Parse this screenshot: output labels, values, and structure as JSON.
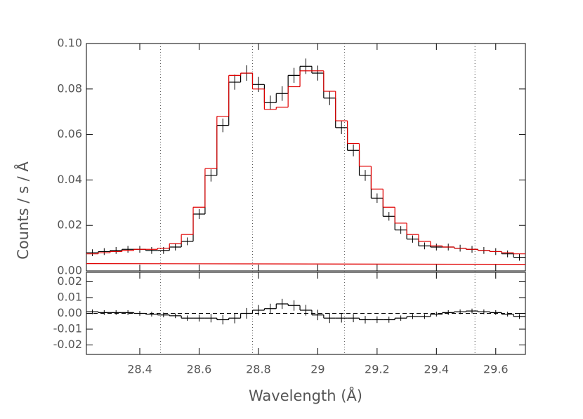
{
  "chart_data": {
    "type": "step",
    "xlabel": "Wavelength (Å)",
    "ylabel": "Counts / s / Å",
    "xlim": [
      28.22,
      29.7
    ],
    "xticks": [
      28.4,
      28.6,
      28.8,
      29.0,
      29.2,
      29.4,
      29.6
    ],
    "vlines": [
      28.47,
      28.78,
      29.09,
      29.53
    ],
    "bins": [
      28.22,
      28.26,
      28.3,
      28.34,
      28.38,
      28.42,
      28.46,
      28.5,
      28.54,
      28.58,
      28.62,
      28.66,
      28.7,
      28.74,
      28.78,
      28.82,
      28.86,
      28.9,
      28.94,
      28.98,
      29.02,
      29.06,
      29.1,
      29.14,
      29.18,
      29.22,
      29.26,
      29.3,
      29.34,
      29.38,
      29.42,
      29.46,
      29.5,
      29.54,
      29.58,
      29.62,
      29.66,
      29.7
    ],
    "ylim": [
      0,
      0.1
    ],
    "yticks": [
      {
        "value": 0,
        "label": "0.00"
      },
      {
        "value": 0.02,
        "label": "0.02"
      },
      {
        "value": 0.04,
        "label": "0.04"
      },
      {
        "value": 0.06,
        "label": "0.06"
      },
      {
        "value": 0.08,
        "label": "0.08"
      },
      {
        "value": 0.1,
        "label": "0.10"
      }
    ],
    "data": {
      "color": "#000000",
      "values": [
        0.008,
        0.0085,
        0.009,
        0.0095,
        0.0095,
        0.009,
        0.009,
        0.0105,
        0.013,
        0.025,
        0.042,
        0.064,
        0.083,
        0.087,
        0.082,
        0.074,
        0.078,
        0.086,
        0.09,
        0.087,
        0.076,
        0.063,
        0.053,
        0.042,
        0.032,
        0.024,
        0.018,
        0.014,
        0.011,
        0.0105,
        0.0105,
        0.01,
        0.0095,
        0.009,
        0.0085,
        0.0075,
        0.006
      ],
      "errors": [
        0.0015,
        0.0015,
        0.0015,
        0.0015,
        0.0015,
        0.0015,
        0.0015,
        0.0015,
        0.0017,
        0.0022,
        0.0027,
        0.003,
        0.0033,
        0.0034,
        0.0033,
        0.0031,
        0.0032,
        0.0033,
        0.0034,
        0.0033,
        0.0031,
        0.0028,
        0.0026,
        0.0024,
        0.0021,
        0.0019,
        0.0017,
        0.0016,
        0.0015,
        0.0015,
        0.0015,
        0.0015,
        0.0015,
        0.0015,
        0.0015,
        0.0015,
        0.0015
      ]
    },
    "model": {
      "color": "#e00000",
      "values": [
        0.0075,
        0.008,
        0.0085,
        0.009,
        0.0095,
        0.0095,
        0.01,
        0.012,
        0.016,
        0.028,
        0.045,
        0.068,
        0.086,
        0.087,
        0.08,
        0.071,
        0.072,
        0.081,
        0.088,
        0.088,
        0.079,
        0.066,
        0.056,
        0.046,
        0.036,
        0.028,
        0.021,
        0.016,
        0.013,
        0.011,
        0.0105,
        0.01,
        0.0095,
        0.009,
        0.0085,
        0.008,
        0.0075
      ]
    },
    "continuum": {
      "color": "#e00000",
      "x": [
        28.22,
        29.7
      ],
      "values": [
        0.0032,
        0.0029
      ]
    },
    "residuals": {
      "color": "#000000",
      "ylim": [
        -0.026,
        0.026
      ],
      "yticks": [
        {
          "value": -0.02,
          "label": "-0.02"
        },
        {
          "value": -0.01,
          "label": "-0.01"
        },
        {
          "value": 0,
          "label": "0.00"
        },
        {
          "value": 0.01,
          "label": "0.01"
        },
        {
          "value": 0.02,
          "label": "0.02"
        }
      ],
      "values": [
        0.001,
        0.0005,
        0.0005,
        0.0005,
        0,
        -0.0005,
        -0.001,
        -0.0015,
        -0.003,
        -0.003,
        -0.003,
        -0.004,
        -0.003,
        0,
        0.002,
        0.003,
        0.006,
        0.005,
        0.002,
        -0.001,
        -0.003,
        -0.003,
        -0.003,
        -0.004,
        -0.004,
        -0.004,
        -0.003,
        -0.002,
        -0.002,
        -0.0005,
        0.0005,
        0.001,
        0.0015,
        0.001,
        0.0005,
        -0.0005,
        -0.002
      ]
    }
  }
}
